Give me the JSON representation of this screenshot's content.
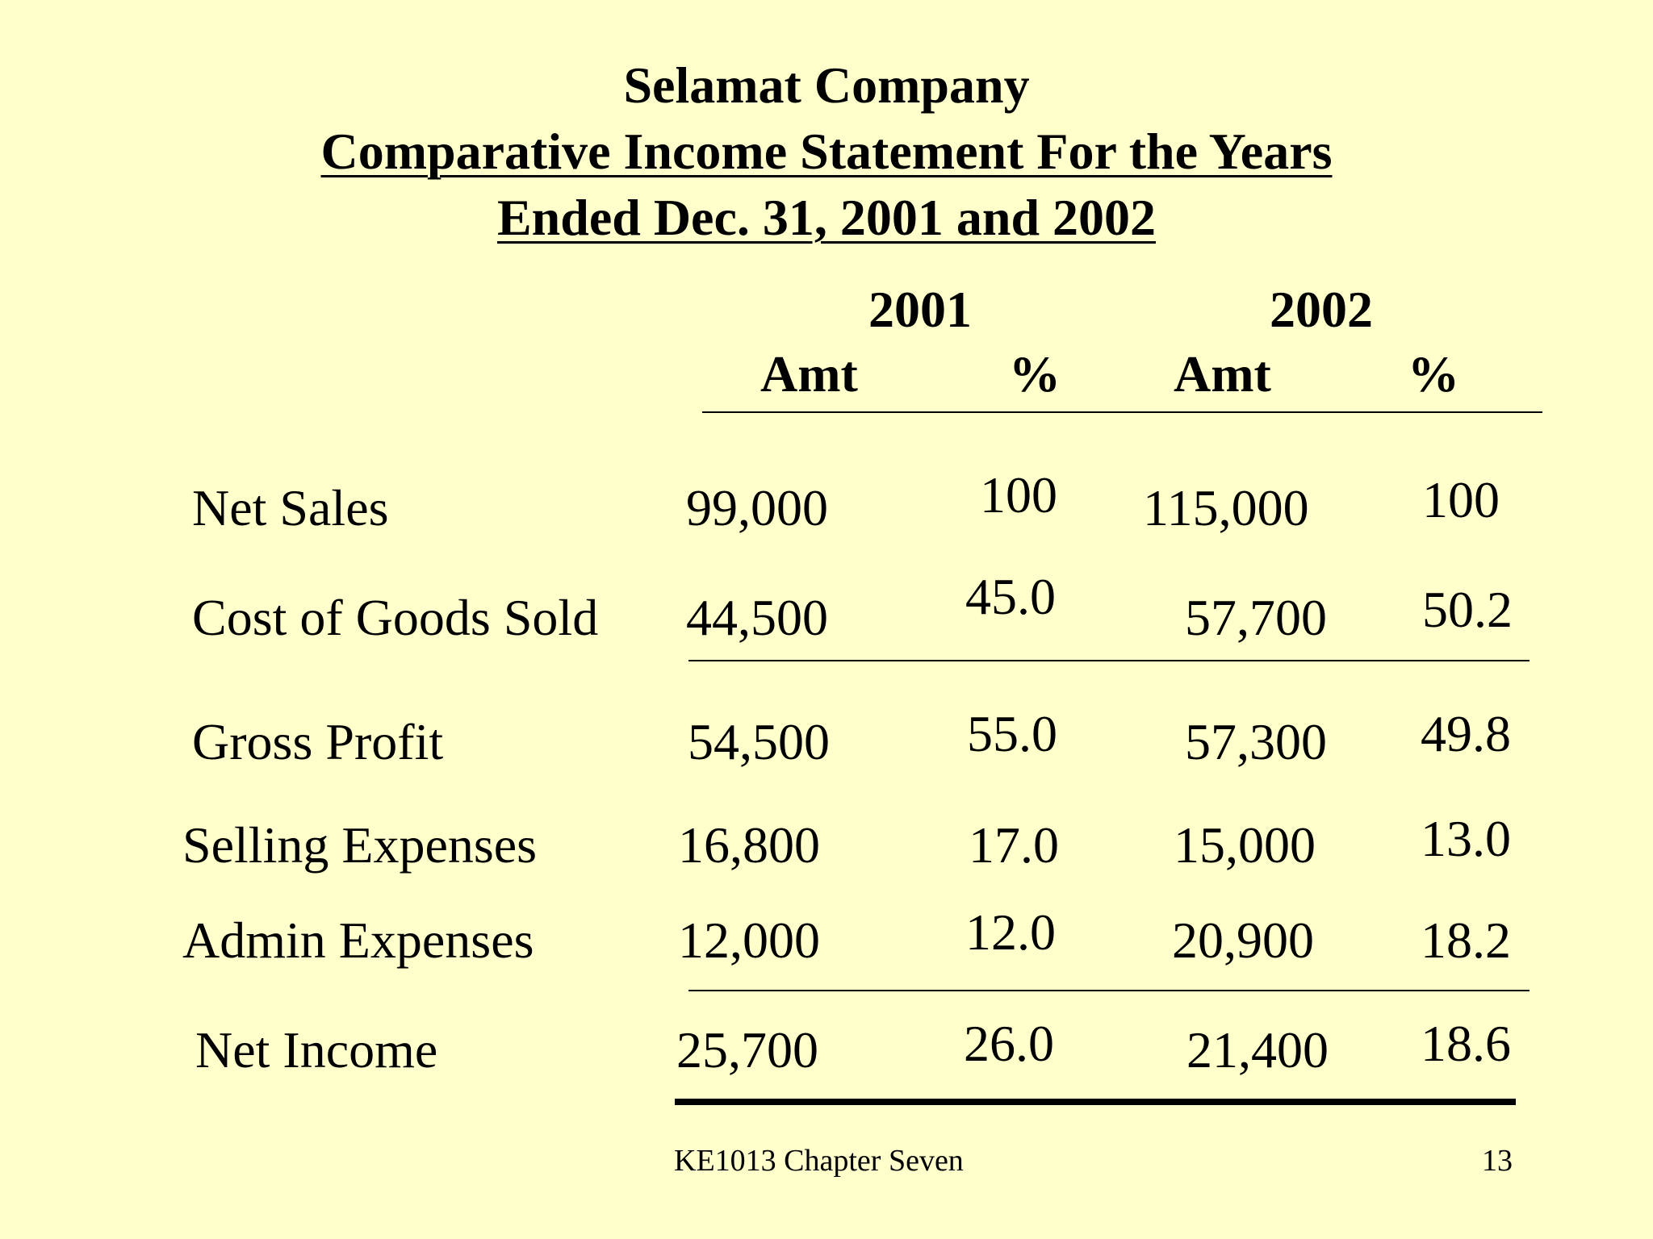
{
  "header": {
    "company": "Selamat Company",
    "statement_line1": "Comparative Income Statement For the Years",
    "statement_line2": "Ended  Dec. 31, 2001 and 2002"
  },
  "columns": {
    "year_2001": "2001",
    "year_2002": "2002",
    "amt_2001": "Amt",
    "pct_2001": "%",
    "amt_2002": "Amt",
    "pct_2002": "%"
  },
  "rows": [
    {
      "label": "Net Sales",
      "amt_2001": "99,000",
      "pct_2001": "100",
      "amt_2002": "115,000",
      "pct_2002": "100"
    },
    {
      "label": "Cost of Goods Sold",
      "amt_2001": "44,500",
      "pct_2001": "45.0",
      "amt_2002": "57,700",
      "pct_2002": "50.2"
    },
    {
      "label": "Gross Profit",
      "amt_2001": "54,500",
      "pct_2001": "55.0",
      "amt_2002": "57,300",
      "pct_2002": "49.8"
    },
    {
      "label": "Selling Expenses",
      "amt_2001": "16,800",
      "pct_2001": "17.0",
      "amt_2002": "15,000",
      "pct_2002": "13.0"
    },
    {
      "label": "Admin Expenses",
      "amt_2001": "12,000",
      "pct_2001": "12.0",
      "amt_2002": "20,900",
      "pct_2002": "18.2"
    },
    {
      "label": "Net Income",
      "amt_2001": "25,700",
      "pct_2001": "26.0",
      "amt_2002": "21,400",
      "pct_2002": "18.6"
    }
  ],
  "footer": {
    "course": "KE1013 Chapter Seven",
    "page_number": "13"
  }
}
